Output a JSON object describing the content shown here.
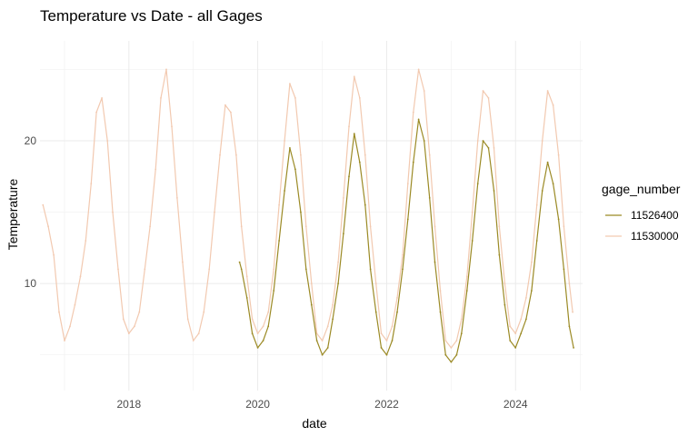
{
  "chart_data": {
    "type": "line",
    "title": "Temperature vs Date - all Gages",
    "xlabel": "date",
    "ylabel": "Temperature",
    "xlim": [
      "2016-08-15",
      "2025-01-15"
    ],
    "ylim": [
      2.5,
      27
    ],
    "x_ticks": [
      {
        "date": "2018-01-01",
        "label": "2018"
      },
      {
        "date": "2020-01-01",
        "label": "2020"
      },
      {
        "date": "2022-01-01",
        "label": "2022"
      },
      {
        "date": "2024-01-01",
        "label": "2024"
      }
    ],
    "y_ticks": [
      10,
      20
    ],
    "grid": true,
    "legend": {
      "title": "gage_number",
      "position": "right"
    },
    "series": [
      {
        "name": "11530000",
        "color": "#f2c9b0",
        "points": [
          [
            "2016-09-01",
            15.5
          ],
          [
            "2016-10-01",
            14
          ],
          [
            "2016-11-01",
            12
          ],
          [
            "2016-12-01",
            8
          ],
          [
            "2017-01-01",
            6
          ],
          [
            "2017-02-01",
            7
          ],
          [
            "2017-03-01",
            8.5
          ],
          [
            "2017-04-01",
            10.5
          ],
          [
            "2017-05-01",
            13
          ],
          [
            "2017-06-01",
            17
          ],
          [
            "2017-07-01",
            22
          ],
          [
            "2017-08-01",
            23
          ],
          [
            "2017-09-01",
            20
          ],
          [
            "2017-10-01",
            15
          ],
          [
            "2017-11-01",
            11
          ],
          [
            "2017-12-01",
            7.5
          ],
          [
            "2018-01-01",
            6.5
          ],
          [
            "2018-02-01",
            7
          ],
          [
            "2018-03-01",
            8
          ],
          [
            "2018-04-01",
            11
          ],
          [
            "2018-05-01",
            14
          ],
          [
            "2018-06-01",
            18
          ],
          [
            "2018-07-01",
            23
          ],
          [
            "2018-08-01",
            25
          ],
          [
            "2018-09-01",
            21
          ],
          [
            "2018-10-01",
            16
          ],
          [
            "2018-11-01",
            11.5
          ],
          [
            "2018-12-01",
            7.5
          ],
          [
            "2019-01-01",
            6
          ],
          [
            "2019-02-01",
            6.5
          ],
          [
            "2019-03-01",
            8
          ],
          [
            "2019-04-01",
            11
          ],
          [
            "2019-05-01",
            15
          ],
          [
            "2019-06-01",
            19
          ],
          [
            "2019-07-01",
            22.5
          ],
          [
            "2019-08-01",
            22
          ],
          [
            "2019-09-01",
            19
          ],
          [
            "2019-10-01",
            14
          ],
          [
            "2019-11-01",
            10.5
          ],
          [
            "2019-12-01",
            7.5
          ],
          [
            "2020-01-01",
            6.5
          ],
          [
            "2020-02-01",
            7
          ],
          [
            "2020-03-01",
            8
          ],
          [
            "2020-04-01",
            11
          ],
          [
            "2020-05-01",
            15.5
          ],
          [
            "2020-06-01",
            20
          ],
          [
            "2020-07-01",
            24
          ],
          [
            "2020-08-01",
            23
          ],
          [
            "2020-09-01",
            19
          ],
          [
            "2020-10-01",
            14
          ],
          [
            "2020-11-01",
            10
          ],
          [
            "2020-12-01",
            6.5
          ],
          [
            "2021-01-01",
            6
          ],
          [
            "2021-02-01",
            7
          ],
          [
            "2021-03-01",
            8.5
          ],
          [
            "2021-04-01",
            11.5
          ],
          [
            "2021-05-01",
            16
          ],
          [
            "2021-06-01",
            21
          ],
          [
            "2021-07-01",
            24.5
          ],
          [
            "2021-08-01",
            23
          ],
          [
            "2021-09-01",
            19
          ],
          [
            "2021-10-01",
            14
          ],
          [
            "2021-11-01",
            10
          ],
          [
            "2021-12-01",
            6.5
          ],
          [
            "2022-01-01",
            6
          ],
          [
            "2022-02-01",
            7
          ],
          [
            "2022-03-01",
            9
          ],
          [
            "2022-04-01",
            12
          ],
          [
            "2022-05-01",
            17
          ],
          [
            "2022-06-01",
            22
          ],
          [
            "2022-07-01",
            25
          ],
          [
            "2022-08-01",
            23.5
          ],
          [
            "2022-09-01",
            19
          ],
          [
            "2022-10-01",
            14
          ],
          [
            "2022-11-01",
            9.5
          ],
          [
            "2022-12-01",
            6
          ],
          [
            "2023-01-01",
            5.5
          ],
          [
            "2023-02-01",
            6
          ],
          [
            "2023-03-01",
            7.5
          ],
          [
            "2023-04-01",
            10.5
          ],
          [
            "2023-05-01",
            15
          ],
          [
            "2023-06-01",
            20
          ],
          [
            "2023-07-01",
            23.5
          ],
          [
            "2023-08-01",
            23
          ],
          [
            "2023-09-01",
            19.5
          ],
          [
            "2023-10-01",
            14
          ],
          [
            "2023-11-01",
            10
          ],
          [
            "2023-12-01",
            7
          ],
          [
            "2024-01-01",
            6.5
          ],
          [
            "2024-02-01",
            7.5
          ],
          [
            "2024-03-01",
            9
          ],
          [
            "2024-04-01",
            11.5
          ],
          [
            "2024-05-01",
            15.5
          ],
          [
            "2024-06-01",
            20
          ],
          [
            "2024-07-01",
            23.5
          ],
          [
            "2024-08-01",
            22.5
          ],
          [
            "2024-09-01",
            19
          ],
          [
            "2024-10-01",
            14
          ],
          [
            "2024-11-01",
            10
          ],
          [
            "2024-11-20",
            8
          ]
        ]
      },
      {
        "name": "11526400",
        "color": "#9b8a25",
        "points": [
          [
            "2019-09-20",
            11.5
          ],
          [
            "2019-10-01",
            11
          ],
          [
            "2019-11-01",
            9
          ],
          [
            "2019-12-01",
            6.5
          ],
          [
            "2020-01-01",
            5.5
          ],
          [
            "2020-02-01",
            6
          ],
          [
            "2020-03-01",
            7
          ],
          [
            "2020-04-01",
            9.5
          ],
          [
            "2020-05-01",
            13
          ],
          [
            "2020-06-01",
            16.5
          ],
          [
            "2020-07-01",
            19.5
          ],
          [
            "2020-08-01",
            18
          ],
          [
            "2020-09-01",
            15
          ],
          [
            "2020-10-01",
            11
          ],
          [
            "2020-11-01",
            8.5
          ],
          [
            "2020-12-01",
            6
          ],
          [
            "2021-01-01",
            5
          ],
          [
            "2021-02-01",
            5.5
          ],
          [
            "2021-03-01",
            7.5
          ],
          [
            "2021-04-01",
            10
          ],
          [
            "2021-05-01",
            13.5
          ],
          [
            "2021-06-01",
            17.5
          ],
          [
            "2021-07-01",
            20.5
          ],
          [
            "2021-08-01",
            18.5
          ],
          [
            "2021-09-01",
            15.5
          ],
          [
            "2021-10-01",
            11
          ],
          [
            "2021-11-01",
            8
          ],
          [
            "2021-12-01",
            5.5
          ],
          [
            "2022-01-01",
            5
          ],
          [
            "2022-02-01",
            6
          ],
          [
            "2022-03-01",
            8
          ],
          [
            "2022-04-01",
            11
          ],
          [
            "2022-05-01",
            14.5
          ],
          [
            "2022-06-01",
            18.5
          ],
          [
            "2022-07-01",
            21.5
          ],
          [
            "2022-08-01",
            20
          ],
          [
            "2022-09-01",
            16
          ],
          [
            "2022-10-01",
            11.5
          ],
          [
            "2022-11-01",
            8
          ],
          [
            "2022-12-01",
            5
          ],
          [
            "2023-01-01",
            4.5
          ],
          [
            "2023-02-01",
            5
          ],
          [
            "2023-03-01",
            6.5
          ],
          [
            "2023-04-01",
            9.5
          ],
          [
            "2023-05-01",
            13
          ],
          [
            "2023-06-01",
            17
          ],
          [
            "2023-07-01",
            20
          ],
          [
            "2023-08-01",
            19.5
          ],
          [
            "2023-09-01",
            16.5
          ],
          [
            "2023-10-01",
            12
          ],
          [
            "2023-11-01",
            8.5
          ],
          [
            "2023-12-01",
            6
          ],
          [
            "2024-01-01",
            5.5
          ],
          [
            "2024-02-01",
            6.5
          ],
          [
            "2024-03-01",
            7.5
          ],
          [
            "2024-04-01",
            9.5
          ],
          [
            "2024-05-01",
            13
          ],
          [
            "2024-06-01",
            16.5
          ],
          [
            "2024-07-01",
            18.5
          ],
          [
            "2024-08-01",
            17
          ],
          [
            "2024-09-01",
            14.5
          ],
          [
            "2024-10-01",
            11
          ],
          [
            "2024-11-01",
            7
          ],
          [
            "2024-11-25",
            5.5
          ]
        ]
      }
    ]
  }
}
